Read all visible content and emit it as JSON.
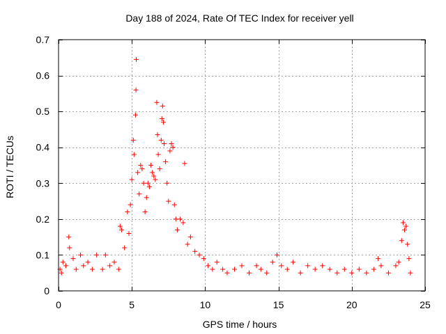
{
  "chart_data": {
    "type": "scatter",
    "title": "Day 188 of 2024, Rate Of TEC Index for receiver yell",
    "xlabel": "GPS time / hours",
    "ylabel": "ROTI / TECUs",
    "xlim": [
      0,
      25
    ],
    "ylim": [
      0,
      0.7
    ],
    "xticks": [
      0,
      5,
      10,
      15,
      20,
      25
    ],
    "yticks": [
      0,
      0.1,
      0.2,
      0.3,
      0.4,
      0.5,
      0.6,
      0.7
    ],
    "xtick_labels": [
      "0",
      "5",
      "10",
      "15",
      "20",
      "25"
    ],
    "ytick_labels": [
      "0",
      "0.1",
      "0.2",
      "0.3",
      "0.4",
      "0.5",
      "0.6",
      "0.7"
    ],
    "grid": true,
    "marker": "plus",
    "marker_color": "#ff0000",
    "series": [
      {
        "name": "ROTI",
        "points": [
          [
            0.1,
            0.06
          ],
          [
            0.2,
            0.05
          ],
          [
            0.3,
            0.08
          ],
          [
            0.5,
            0.07
          ],
          [
            0.7,
            0.15
          ],
          [
            0.75,
            0.12
          ],
          [
            1.0,
            0.09
          ],
          [
            1.2,
            0.06
          ],
          [
            1.5,
            0.1
          ],
          [
            1.7,
            0.07
          ],
          [
            2.0,
            0.08
          ],
          [
            2.3,
            0.06
          ],
          [
            2.6,
            0.1
          ],
          [
            3.0,
            0.06
          ],
          [
            3.2,
            0.1
          ],
          [
            3.5,
            0.07
          ],
          [
            3.8,
            0.08
          ],
          [
            4.1,
            0.06
          ],
          [
            4.2,
            0.18
          ],
          [
            4.3,
            0.17
          ],
          [
            4.5,
            0.12
          ],
          [
            4.7,
            0.22
          ],
          [
            4.8,
            0.16
          ],
          [
            4.9,
            0.24
          ],
          [
            5.0,
            0.31
          ],
          [
            5.1,
            0.42
          ],
          [
            5.15,
            0.38
          ],
          [
            5.25,
            0.49
          ],
          [
            5.28,
            0.56
          ],
          [
            5.3,
            0.645
          ],
          [
            5.4,
            0.33
          ],
          [
            5.5,
            0.27
          ],
          [
            5.6,
            0.35
          ],
          [
            5.7,
            0.34
          ],
          [
            5.8,
            0.3
          ],
          [
            5.9,
            0.22
          ],
          [
            6.0,
            0.26
          ],
          [
            6.1,
            0.3
          ],
          [
            6.2,
            0.29
          ],
          [
            6.3,
            0.35
          ],
          [
            6.4,
            0.33
          ],
          [
            6.5,
            0.32
          ],
          [
            6.6,
            0.31
          ],
          [
            6.7,
            0.525
          ],
          [
            6.75,
            0.435
          ],
          [
            6.8,
            0.38
          ],
          [
            6.9,
            0.34
          ],
          [
            7.0,
            0.42
          ],
          [
            7.05,
            0.48
          ],
          [
            7.1,
            0.515
          ],
          [
            7.15,
            0.47
          ],
          [
            7.2,
            0.41
          ],
          [
            7.3,
            0.36
          ],
          [
            7.4,
            0.3
          ],
          [
            7.5,
            0.25
          ],
          [
            7.6,
            0.39
          ],
          [
            7.7,
            0.41
          ],
          [
            7.8,
            0.4
          ],
          [
            7.9,
            0.24
          ],
          [
            8.0,
            0.2
          ],
          [
            8.1,
            0.17
          ],
          [
            8.3,
            0.2
          ],
          [
            8.5,
            0.19
          ],
          [
            8.6,
            0.355
          ],
          [
            8.8,
            0.13
          ],
          [
            9.0,
            0.15
          ],
          [
            9.3,
            0.11
          ],
          [
            9.6,
            0.1
          ],
          [
            9.9,
            0.09
          ],
          [
            10.2,
            0.07
          ],
          [
            10.5,
            0.06
          ],
          [
            10.8,
            0.08
          ],
          [
            11.2,
            0.06
          ],
          [
            11.5,
            0.05
          ],
          [
            12.0,
            0.06
          ],
          [
            12.5,
            0.07
          ],
          [
            13.0,
            0.05
          ],
          [
            13.5,
            0.07
          ],
          [
            13.8,
            0.06
          ],
          [
            14.2,
            0.05
          ],
          [
            14.6,
            0.08
          ],
          [
            14.9,
            0.1
          ],
          [
            15.2,
            0.07
          ],
          [
            15.6,
            0.06
          ],
          [
            16.0,
            0.08
          ],
          [
            16.5,
            0.05
          ],
          [
            17.0,
            0.07
          ],
          [
            17.5,
            0.06
          ],
          [
            18.0,
            0.07
          ],
          [
            18.5,
            0.06
          ],
          [
            19.0,
            0.05
          ],
          [
            19.5,
            0.06
          ],
          [
            20.0,
            0.05
          ],
          [
            20.5,
            0.06
          ],
          [
            21.0,
            0.05
          ],
          [
            21.5,
            0.06
          ],
          [
            21.8,
            0.09
          ],
          [
            22.0,
            0.07
          ],
          [
            22.5,
            0.05
          ],
          [
            23.0,
            0.07
          ],
          [
            23.2,
            0.08
          ],
          [
            23.4,
            0.14
          ],
          [
            23.5,
            0.19
          ],
          [
            23.6,
            0.17
          ],
          [
            23.7,
            0.18
          ],
          [
            23.8,
            0.13
          ],
          [
            23.9,
            0.09
          ],
          [
            24.0,
            0.05
          ]
        ]
      }
    ]
  }
}
